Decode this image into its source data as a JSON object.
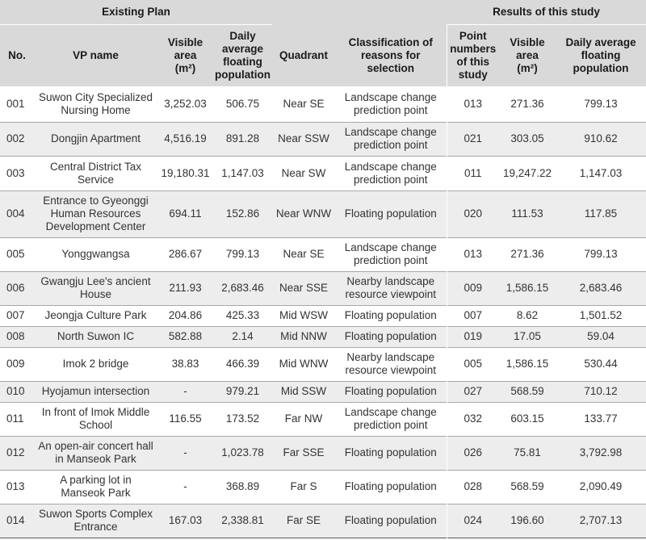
{
  "table": {
    "group_headers": {
      "existing": "Existing Plan",
      "results": "Results of this study"
    },
    "columns": {
      "no": "No.",
      "vp_name": "VP name",
      "visible_area": "Visible area",
      "visible_area_unit": "(m²)",
      "daily_pop": "Daily average floating population",
      "quadrant": "Quadrant",
      "classification": "Classification of reasons for selection",
      "point_numbers": "Point numbers of this study",
      "visible_area2": "Visible area",
      "visible_area2_unit": "(m²)",
      "daily_pop2": "Daily average floating population"
    },
    "rows": [
      {
        "no": "001",
        "name": "Suwon City Specialized Nursing Home",
        "area": "3,252.03",
        "pop": "506.75",
        "quadrant": "Near SE",
        "reason": "Landscape change prediction point",
        "point": "013",
        "area2": "271.36",
        "pop2": "799.13"
      },
      {
        "no": "002",
        "name": "Dongjin Apartment",
        "area": "4,516.19",
        "pop": "891.28",
        "quadrant": "Near SSW",
        "reason": "Landscape change prediction point",
        "point": "021",
        "area2": "303.05",
        "pop2": "910.62"
      },
      {
        "no": "003",
        "name": "Central District Tax Service",
        "area": "19,180.31",
        "pop": "1,147.03",
        "quadrant": "Near SW",
        "reason": "Landscape change prediction point",
        "point": "011",
        "area2": "19,247.22",
        "pop2": "1,147.03"
      },
      {
        "no": "004",
        "name": "Entrance to Gyeonggi Human Resources Development Center",
        "area": "694.11",
        "pop": "152.86",
        "quadrant": "Near WNW",
        "reason": "Floating population",
        "point": "020",
        "area2": "111.53",
        "pop2": "117.85"
      },
      {
        "no": "005",
        "name": "Yonggwangsa",
        "area": "286.67",
        "pop": "799.13",
        "quadrant": "Near SE",
        "reason": "Landscape change prediction point",
        "point": "013",
        "area2": "271.36",
        "pop2": "799.13"
      },
      {
        "no": "006",
        "name": "Gwangju Lee's ancient House",
        "area": "211.93",
        "pop": "2,683.46",
        "quadrant": "Near SSE",
        "reason": "Nearby landscape resource viewpoint",
        "point": "009",
        "area2": "1,586.15",
        "pop2": "2,683.46"
      },
      {
        "no": "007",
        "name": "Jeongja Culture Park",
        "area": "204.86",
        "pop": "425.33",
        "quadrant": "Mid WSW",
        "reason": "Floating population",
        "point": "007",
        "area2": "8.62",
        "pop2": "1,501.52"
      },
      {
        "no": "008",
        "name": "North Suwon IC",
        "area": "582.88",
        "pop": "2.14",
        "quadrant": "Mid NNW",
        "reason": "Floating population",
        "point": "019",
        "area2": "17.05",
        "pop2": "59.04"
      },
      {
        "no": "009",
        "name": "Imok 2 bridge",
        "area": "38.83",
        "pop": "466.39",
        "quadrant": "Mid WNW",
        "reason": "Nearby landscape resource viewpoint",
        "point": "005",
        "area2": "1,586.15",
        "pop2": "530.44"
      },
      {
        "no": "010",
        "name": "Hyojamun intersection",
        "area": "-",
        "pop": "979.21",
        "quadrant": "Mid SSW",
        "reason": "Floating population",
        "point": "027",
        "area2": "568.59",
        "pop2": "710.12"
      },
      {
        "no": "011",
        "name": "In front of Imok Middle School",
        "area": "116.55",
        "pop": "173.52",
        "quadrant": "Far NW",
        "reason": "Landscape change prediction point",
        "point": "032",
        "area2": "603.15",
        "pop2": "133.77"
      },
      {
        "no": "012",
        "name": "An open-air concert hall in Manseok Park",
        "area": "-",
        "pop": "1,023.78",
        "quadrant": "Far SSE",
        "reason": "Floating population",
        "point": "026",
        "area2": "75.81",
        "pop2": "3,792.98"
      },
      {
        "no": "013",
        "name": "A parking lot in Manseok Park",
        "area": "-",
        "pop": "368.89",
        "quadrant": "Far S",
        "reason": "Floating population",
        "point": "028",
        "area2": "568.59",
        "pop2": "2,090.49"
      },
      {
        "no": "014",
        "name": "Suwon Sports Complex Entrance",
        "area": "167.03",
        "pop": "2,338.81",
        "quadrant": "Far SE",
        "reason": "Floating population",
        "point": "024",
        "area2": "196.60",
        "pop2": "2,707.13"
      }
    ]
  }
}
